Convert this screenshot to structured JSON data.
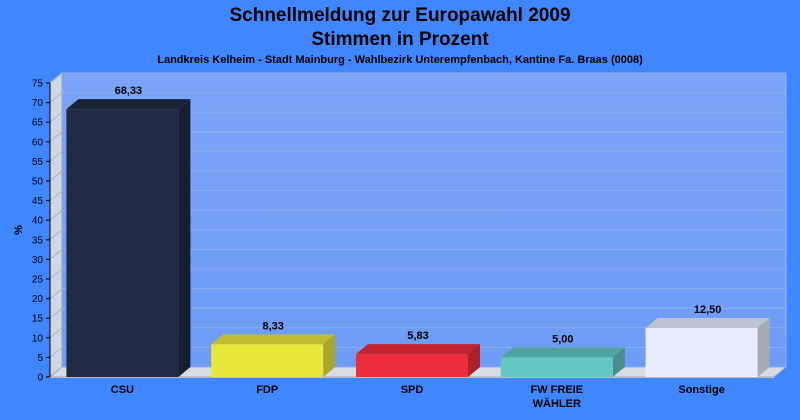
{
  "chart_data": {
    "type": "bar",
    "title": "Schnellmeldung zur Europawahl 2009",
    "title2": "Stimmen in Prozent",
    "subtitle": "Landkreis Kelheim - Stadt Mainburg - Wahlbezirk Unterempfenbach, Kantine Fa. Braas (0008)",
    "ylabel": "%",
    "ylim": [
      0,
      75
    ],
    "yticks": [
      0,
      5,
      10,
      15,
      20,
      25,
      30,
      35,
      40,
      45,
      50,
      55,
      60,
      65,
      70,
      75
    ],
    "categories": [
      {
        "line1": "CSU",
        "line2": ""
      },
      {
        "line1": "FDP",
        "line2": ""
      },
      {
        "line1": "SPD",
        "line2": ""
      },
      {
        "line1": "FW FREIE",
        "line2": "WÄHLER"
      },
      {
        "line1": "Sonstige",
        "line2": ""
      }
    ],
    "values": [
      68.33,
      8.33,
      5.83,
      5.0,
      12.5
    ],
    "value_labels": [
      "68,33",
      "8,33",
      "5,83",
      "5,00",
      "12,50"
    ],
    "colors": [
      "#1f2b44",
      "#e8e83a",
      "#ee2d3a",
      "#63c7c2",
      "#e8eeff"
    ],
    "grid": true,
    "legend": "none"
  }
}
